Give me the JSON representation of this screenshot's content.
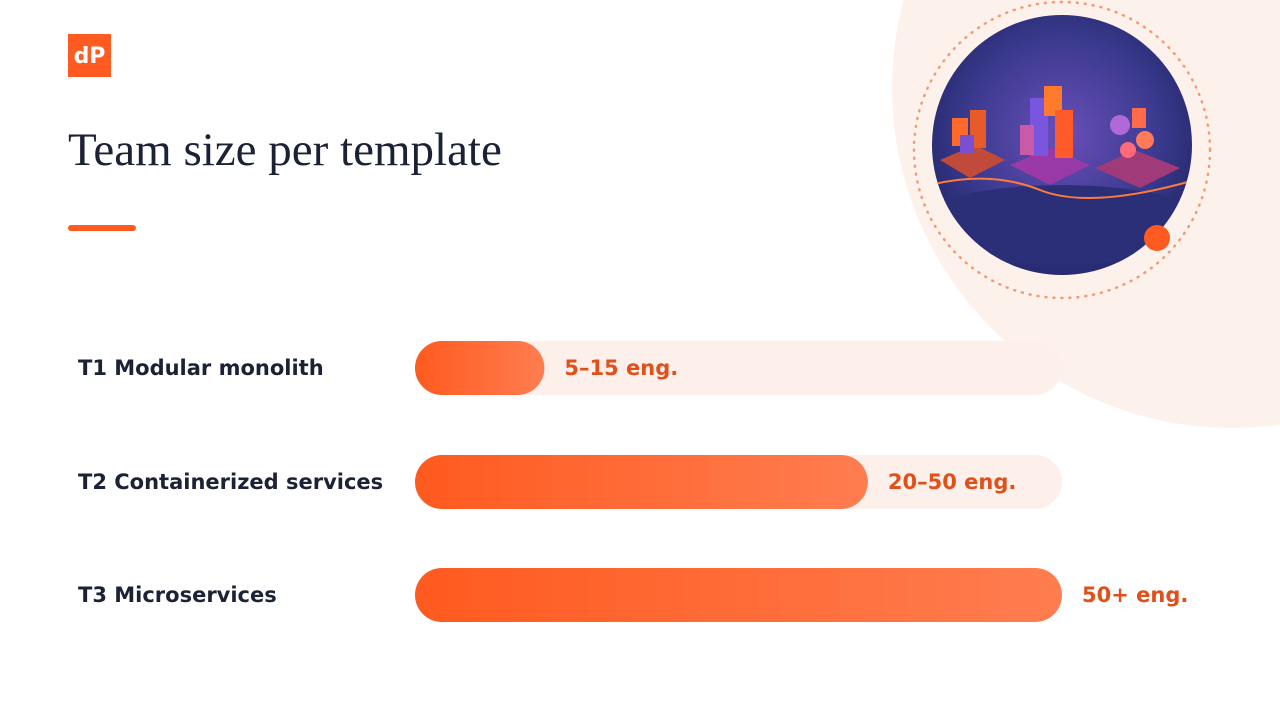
{
  "logo": "dP",
  "chart_data": {
    "type": "hbar",
    "title": "Team size per template",
    "categories": [
      "T1 Modular monolith",
      "T2 Containerized services",
      "T3 Microservices"
    ],
    "values": [
      10,
      35,
      50
    ],
    "value_labels": [
      "5–15 eng.",
      "20–50 eng.",
      "50+ eng."
    ],
    "xlim": [
      0,
      50
    ],
    "color": "#ff5a1f"
  }
}
